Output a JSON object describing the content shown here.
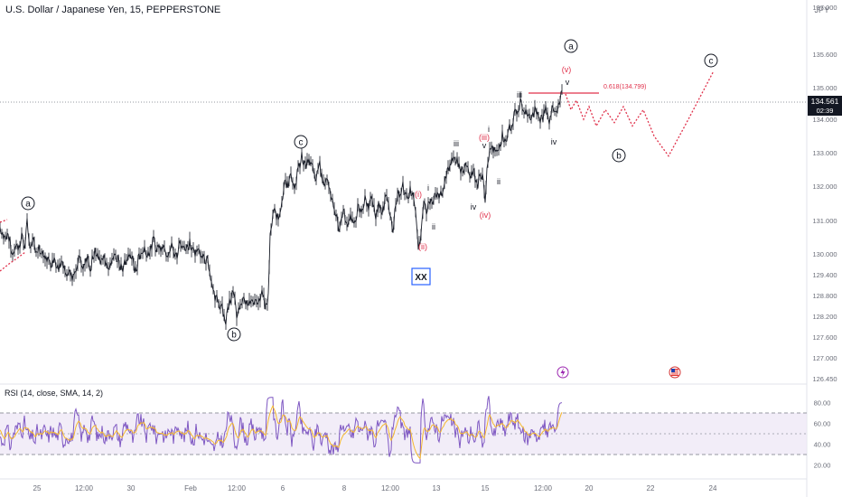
{
  "header": {
    "title": "U.S. Dollar / Japanese Yen, 15, PEPPERSTONE",
    "currency": "JPY"
  },
  "price_badge": {
    "value": "134.561",
    "countdown": "02:39"
  },
  "rsi_label": "RSI (14, close, SMA, 14, 2)",
  "colors": {
    "candle": "#131722",
    "wave_black": "#131722",
    "wave_red": "#e0314b",
    "rsi": "#7e57c2",
    "rsi_ma": "#f5b82e",
    "rsi_band": "#ede7f6",
    "axis_text": "#6a6d78",
    "price_line": "#9598a1"
  },
  "chart_data": [
    {
      "type": "line",
      "title": "U.S. Dollar / Japanese Yen, 15, PEPPERSTONE",
      "y_axis": {
        "ticks": [
          "137.000",
          "135.600",
          "135.000",
          "134.000",
          "133.000",
          "132.000",
          "131.000",
          "130.000",
          "129.400",
          "128.800",
          "128.200",
          "127.600",
          "127.000",
          "126.450"
        ],
        "ylim": [
          126.3,
          137.2
        ],
        "label": "JPY"
      },
      "x_axis": {
        "ticks": [
          "25",
          "12:00",
          "30",
          "Feb",
          "12:00",
          "6",
          "8",
          "12:00",
          "13",
          "15",
          "12:00",
          "20",
          "22",
          "24"
        ]
      },
      "series": [
        {
          "points": [
            [
              0,
              130.8
            ],
            [
              4,
              130.4
            ],
            [
              9,
              130.6
            ],
            [
              14,
              130.0
            ],
            [
              17,
              130.3
            ],
            [
              21,
              130.1
            ],
            [
              24,
              130.6
            ],
            [
              27,
              130.3
            ],
            [
              30,
              130.9
            ],
            [
              33,
              130.2
            ],
            [
              36,
              130.5
            ],
            [
              39,
              130.0
            ],
            [
              43,
              130.2
            ],
            [
              47,
              129.9
            ],
            [
              51,
              130.0
            ],
            [
              55,
              129.7
            ],
            [
              60,
              129.9
            ],
            [
              64,
              129.6
            ],
            [
              68,
              129.8
            ],
            [
              72,
              129.4
            ],
            [
              76,
              129.6
            ],
            [
              80,
              129.2
            ],
            [
              84,
              129.5
            ],
            [
              88,
              129.9
            ],
            [
              92,
              129.5
            ],
            [
              96,
              129.9
            ],
            [
              100,
              129.6
            ],
            [
              105,
              130.1
            ],
            [
              110,
              129.8
            ],
            [
              115,
              129.9
            ],
            [
              120,
              129.7
            ],
            [
              125,
              129.8
            ],
            [
              130,
              129.9
            ],
            [
              135,
              129.5
            ],
            [
              140,
              129.8
            ],
            [
              145,
              130.0
            ],
            [
              150,
              129.5
            ],
            [
              155,
              130.0
            ],
            [
              160,
              130.2
            ],
            [
              165,
              130.0
            ],
            [
              170,
              130.4
            ],
            [
              175,
              130.1
            ],
            [
              180,
              130.3
            ],
            [
              185,
              130.0
            ],
            [
              190,
              130.2
            ],
            [
              195,
              129.9
            ],
            [
              200,
              130.4
            ],
            [
              205,
              130.1
            ],
            [
              210,
              130.3
            ],
            [
              215,
              130.0
            ],
            [
              220,
              130.2
            ],
            [
              225,
              129.9
            ],
            [
              230,
              129.8
            ],
            [
              234,
              129.3
            ],
            [
              238,
              128.8
            ],
            [
              242,
              128.5
            ],
            [
              246,
              128.4
            ],
            [
              250,
              128.0
            ],
            [
              254,
              128.6
            ],
            [
              258,
              128.9
            ],
            [
              262,
              128.3
            ],
            [
              266,
              128.6
            ],
            [
              270,
              128.8
            ],
            [
              275,
              128.5
            ],
            [
              280,
              128.7
            ],
            [
              285,
              128.5
            ],
            [
              290,
              128.8
            ],
            [
              295,
              128.4
            ],
            [
              297,
              129.0
            ],
            [
              299,
              130.5
            ],
            [
              301,
              131.0
            ],
            [
              304,
              131.3
            ],
            [
              308,
              131.0
            ],
            [
              312,
              131.6
            ],
            [
              315,
              132.2
            ],
            [
              318,
              132.0
            ],
            [
              322,
              132.4
            ],
            [
              326,
              131.8
            ],
            [
              330,
              132.5
            ],
            [
              334,
              132.9
            ],
            [
              338,
              132.6
            ],
            [
              342,
              132.8
            ],
            [
              346,
              132.5
            ],
            [
              350,
              132.2
            ],
            [
              354,
              132.6
            ],
            [
              358,
              132.0
            ],
            [
              362,
              132.3
            ],
            [
              366,
              131.8
            ],
            [
              370,
              131.4
            ],
            [
              373,
              131.0
            ],
            [
              376,
              130.7
            ],
            [
              380,
              131.3
            ],
            [
              384,
              130.9
            ],
            [
              388,
              131.2
            ],
            [
              392,
              130.8
            ],
            [
              396,
              131.4
            ],
            [
              400,
              131.1
            ],
            [
              404,
              131.6
            ],
            [
              408,
              131.3
            ],
            [
              412,
              131.7
            ],
            [
              416,
              131.2
            ],
            [
              420,
              131.5
            ],
            [
              424,
              131.3
            ],
            [
              428,
              131.7
            ],
            [
              432,
              131.0
            ],
            [
              435,
              130.8
            ],
            [
              438,
              131.5
            ],
            [
              442,
              131.8
            ],
            [
              446,
              132.0
            ],
            [
              450,
              131.6
            ],
            [
              454,
              131.9
            ],
            [
              458,
              131.7
            ],
            [
              461,
              130.8
            ],
            [
              463,
              130.0
            ],
            [
              466,
              130.6
            ],
            [
              469,
              131.5
            ],
            [
              472,
              131.3
            ],
            [
              476,
              131.5
            ],
            [
              480,
              131.6
            ],
            [
              484,
              131.9
            ],
            [
              488,
              131.7
            ],
            [
              492,
              132.2
            ],
            [
              496,
              132.5
            ],
            [
              500,
              132.7
            ],
            [
              504,
              132.9
            ],
            [
              508,
              132.6
            ],
            [
              512,
              132.4
            ],
            [
              516,
              132.6
            ],
            [
              520,
              132.2
            ],
            [
              524,
              132.5
            ],
            [
              528,
              132.0
            ],
            [
              532,
              132.4
            ],
            [
              535,
              132.1
            ],
            [
              537,
              131.5
            ],
            [
              540,
              132.8
            ],
            [
              544,
              133.3
            ],
            [
              548,
              133.0
            ],
            [
              552,
              133.2
            ],
            [
              556,
              133.5
            ],
            [
              560,
              133.3
            ],
            [
              564,
              133.7
            ],
            [
              568,
              134.0
            ],
            [
              572,
              134.3
            ],
            [
              576,
              134.5
            ],
            [
              580,
              134.4
            ],
            [
              584,
              134.2
            ],
            [
              588,
              134.0
            ],
            [
              592,
              134.3
            ],
            [
              596,
              134.1
            ],
            [
              600,
              134.0
            ],
            [
              604,
              134.3
            ],
            [
              608,
              134.0
            ],
            [
              612,
              134.4
            ],
            [
              616,
              134.2
            ],
            [
              620,
              134.6
            ],
            [
              622,
              134.8
            ]
          ]
        }
      ],
      "projection": [
        [
          626,
          134.8
        ],
        [
          632,
          134.3
        ],
        [
          638,
          134.6
        ],
        [
          646,
          134.0
        ],
        [
          652,
          134.4
        ],
        [
          660,
          133.8
        ],
        [
          670,
          134.3
        ],
        [
          680,
          133.9
        ],
        [
          690,
          134.4
        ],
        [
          700,
          133.8
        ],
        [
          712,
          134.3
        ],
        [
          724,
          133.5
        ],
        [
          740,
          132.9
        ],
        [
          760,
          133.9
        ],
        [
          790,
          135.3
        ]
      ],
      "fib_label": "0.618(134.799)",
      "annotations": {
        "circled": [
          "a",
          "b",
          "c",
          "a",
          "b",
          "c"
        ],
        "roman_black": [
          "iii",
          "v",
          "iv",
          "iii",
          "v",
          "i",
          "ii",
          "iv",
          "ii",
          "i",
          "ii",
          "iv"
        ],
        "roman_red": [
          "(v)",
          "(iii)",
          "(iv)",
          "i",
          "(i)",
          "(ii)"
        ],
        "box": "XX"
      }
    },
    {
      "type": "line",
      "title": "RSI (14, close, SMA, 14, 2)",
      "y_axis": {
        "ticks": [
          "80.00",
          "60.00",
          "40.00",
          "20.00"
        ],
        "ylim": [
          15,
          90
        ]
      },
      "band": [
        30,
        70
      ],
      "midline": 50
    }
  ]
}
